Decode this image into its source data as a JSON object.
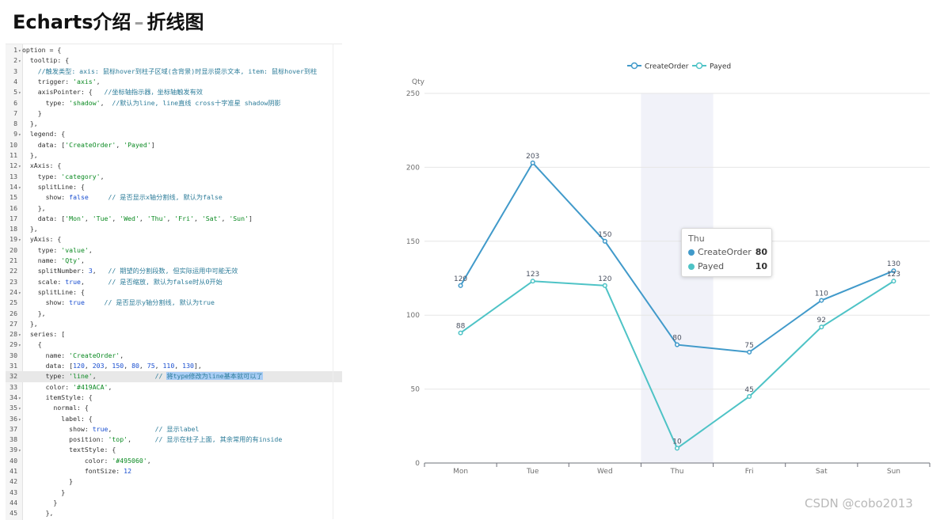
{
  "page": {
    "title_main": "Echarts介绍",
    "title_dash": "–",
    "title_sub": "折线图",
    "watermark": "CSDN @cobo2013"
  },
  "editor": {
    "lines": [
      {
        "n": "1",
        "fold": true,
        "text": "option = {"
      },
      {
        "n": "2",
        "fold": true,
        "text": "  tooltip: {"
      },
      {
        "n": "3",
        "fold": false,
        "text": "    //触发类型: axis: 鼠标hover到柱子区域(含背景)时显示提示文本, item: 鼠标hover到柱"
      },
      {
        "n": "4",
        "fold": false,
        "text": "    trigger: 'axis',"
      },
      {
        "n": "5",
        "fold": true,
        "text": "    axisPointer: {   //坐标轴指示器，坐标轴触发有效"
      },
      {
        "n": "6",
        "fold": false,
        "text": "      type: 'shadow',  //默认为line, line直线 cross十字准星 shadow阴影"
      },
      {
        "n": "7",
        "fold": false,
        "text": "    }"
      },
      {
        "n": "8",
        "fold": false,
        "text": "  },"
      },
      {
        "n": "9",
        "fold": true,
        "text": "  legend: {"
      },
      {
        "n": "10",
        "fold": false,
        "text": "    data: ['CreateOrder', 'Payed']"
      },
      {
        "n": "11",
        "fold": false,
        "text": "  },"
      },
      {
        "n": "12",
        "fold": true,
        "text": "  xAxis: {"
      },
      {
        "n": "13",
        "fold": false,
        "text": "    type: 'category',"
      },
      {
        "n": "14",
        "fold": true,
        "text": "    splitLine: {"
      },
      {
        "n": "15",
        "fold": false,
        "text": "      show: false     // 是否显示x轴分割线, 默认为false"
      },
      {
        "n": "16",
        "fold": false,
        "text": "    },"
      },
      {
        "n": "17",
        "fold": false,
        "text": "    data: ['Mon', 'Tue', 'Wed', 'Thu', 'Fri', 'Sat', 'Sun']"
      },
      {
        "n": "18",
        "fold": false,
        "text": "  },"
      },
      {
        "n": "19",
        "fold": true,
        "text": "  yAxis: {"
      },
      {
        "n": "20",
        "fold": false,
        "text": "    type: 'value',"
      },
      {
        "n": "21",
        "fold": false,
        "text": "    name: 'Qty',"
      },
      {
        "n": "22",
        "fold": false,
        "text": "    splitNumber: 3,   // 期望的分割段数, 但实际运用中可能无效"
      },
      {
        "n": "23",
        "fold": false,
        "text": "    scale: true,      // 是否缩放, 默认为false时从0开始"
      },
      {
        "n": "24",
        "fold": true,
        "text": "    splitLine: {"
      },
      {
        "n": "25",
        "fold": false,
        "text": "      show: true     // 是否显示y轴分割线, 默认为true"
      },
      {
        "n": "26",
        "fold": false,
        "text": "    },"
      },
      {
        "n": "27",
        "fold": false,
        "text": "  },"
      },
      {
        "n": "28",
        "fold": true,
        "text": "  series: ["
      },
      {
        "n": "29",
        "fold": true,
        "text": "    {"
      },
      {
        "n": "30",
        "fold": false,
        "text": "      name: 'CreateOrder',"
      },
      {
        "n": "31",
        "fold": false,
        "text": "      data: [120, 203, 150, 80, 75, 110, 130],"
      },
      {
        "n": "32",
        "fold": false,
        "text": "      type: 'line',               // 将type修改为line基本就可以了",
        "active": true
      },
      {
        "n": "33",
        "fold": false,
        "text": "      color: '#419ACA',"
      },
      {
        "n": "34",
        "fold": true,
        "text": "      itemStyle: {"
      },
      {
        "n": "35",
        "fold": true,
        "text": "        normal: {"
      },
      {
        "n": "36",
        "fold": true,
        "text": "          label: {"
      },
      {
        "n": "37",
        "fold": false,
        "text": "            show: true,           // 显示label"
      },
      {
        "n": "38",
        "fold": false,
        "text": "            position: 'top',      // 显示在柱子上面, 其余常用的有inside"
      },
      {
        "n": "39",
        "fold": true,
        "text": "            textStyle: {"
      },
      {
        "n": "40",
        "fold": false,
        "text": "                color: '#495060',"
      },
      {
        "n": "41",
        "fold": false,
        "text": "                fontSize: 12"
      },
      {
        "n": "42",
        "fold": false,
        "text": "            }"
      },
      {
        "n": "43",
        "fold": false,
        "text": "          }"
      },
      {
        "n": "44",
        "fold": false,
        "text": "        }"
      },
      {
        "n": "45",
        "fold": false,
        "text": "      },"
      }
    ]
  },
  "tooltip": {
    "title": "Thu",
    "rows": [
      {
        "name": "CreateOrder",
        "value": "80",
        "color": "#419ACA"
      },
      {
        "name": "Payed",
        "value": "10",
        "color": "#4ec3c6"
      }
    ]
  },
  "chart_data": {
    "type": "line",
    "categories": [
      "Mon",
      "Tue",
      "Wed",
      "Thu",
      "Fri",
      "Sat",
      "Sun"
    ],
    "series": [
      {
        "name": "CreateOrder",
        "values": [
          120,
          203,
          150,
          80,
          75,
          110,
          130
        ],
        "color": "#419ACA"
      },
      {
        "name": "Payed",
        "values": [
          88,
          123,
          120,
          10,
          45,
          92,
          123
        ],
        "color": "#4ec3c6"
      }
    ],
    "ylabel": "Qty",
    "ylim": [
      0,
      250
    ],
    "yticks": [
      0,
      50,
      100,
      150,
      200,
      250
    ],
    "grid": true,
    "legend": "top-center",
    "highlight_category": "Thu",
    "axis_pointer": "shadow"
  }
}
